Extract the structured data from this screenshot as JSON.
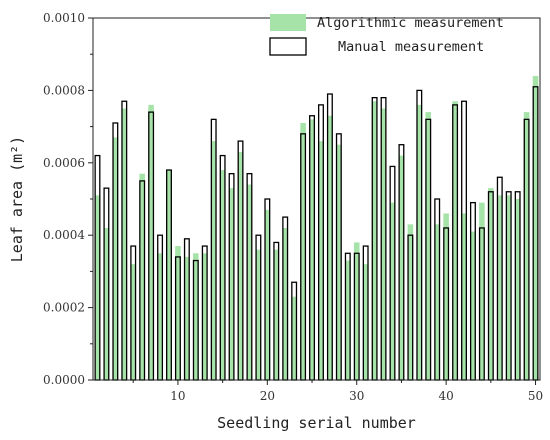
{
  "chart_data": {
    "type": "bar",
    "xlabel": "Seedling serial number",
    "ylabel": "Leaf area (m²)",
    "ylim": [
      0,
      0.001
    ],
    "xlim": [
      0.5,
      50.5
    ],
    "yticks": [
      "0.0000",
      "0.0002",
      "0.0004",
      "0.0006",
      "0.0008",
      "0.0010"
    ],
    "ytick_values": [
      0,
      0.0002,
      0.0004,
      0.0006,
      0.0008,
      0.001
    ],
    "xticks": [
      "10",
      "20",
      "30",
      "40",
      "50"
    ],
    "xtick_values": [
      10,
      20,
      30,
      40,
      50
    ],
    "legend_position": "top-right",
    "x": [
      1,
      2,
      3,
      4,
      5,
      6,
      7,
      8,
      9,
      10,
      11,
      12,
      13,
      14,
      15,
      16,
      17,
      18,
      19,
      20,
      21,
      22,
      23,
      24,
      25,
      26,
      27,
      28,
      29,
      30,
      31,
      32,
      33,
      34,
      35,
      36,
      37,
      38,
      39,
      40,
      41,
      42,
      43,
      44,
      45,
      46,
      47,
      48,
      49,
      50
    ],
    "series": [
      {
        "name": "Algorithmic measurement",
        "color": "#a6e3a8",
        "style": "filled",
        "values": [
          0.00051,
          0.00042,
          0.00067,
          0.00075,
          0.00032,
          0.00057,
          0.00076,
          0.00035,
          0.00058,
          0.00037,
          0.00034,
          0.00035,
          0.00035,
          0.00066,
          0.00058,
          0.00053,
          0.00063,
          0.00054,
          0.00036,
          0.00047,
          0.00036,
          0.00042,
          0.00023,
          0.00071,
          0.00072,
          0.00066,
          0.00073,
          0.00065,
          0.00033,
          0.00038,
          0.00032,
          0.00077,
          0.00075,
          0.00049,
          0.00062,
          0.00043,
          0.00076,
          0.00074,
          0.00043,
          0.00046,
          0.00077,
          0.00046,
          0.00041,
          0.00049,
          0.00053,
          0.00051,
          0.00051,
          0.0005,
          0.00074,
          0.00084
        ]
      },
      {
        "name": "Manual measurement",
        "color": "#000000",
        "style": "outline",
        "values": [
          0.00062,
          0.00053,
          0.00071,
          0.00077,
          0.00037,
          0.00055,
          0.00074,
          0.0004,
          0.00058,
          0.00034,
          0.00039,
          0.00033,
          0.00037,
          0.00072,
          0.00062,
          0.00057,
          0.00066,
          0.00057,
          0.0004,
          0.0005,
          0.00038,
          0.00045,
          0.00027,
          0.00068,
          0.00073,
          0.00076,
          0.00079,
          0.00068,
          0.00035,
          0.00035,
          0.00037,
          0.00078,
          0.00078,
          0.00059,
          0.00065,
          0.0004,
          0.0008,
          0.00072,
          0.0005,
          0.00042,
          0.00076,
          0.00077,
          0.00049,
          0.00042,
          0.00052,
          0.00056,
          0.00052,
          0.00052,
          0.00072,
          0.00081
        ]
      }
    ]
  }
}
